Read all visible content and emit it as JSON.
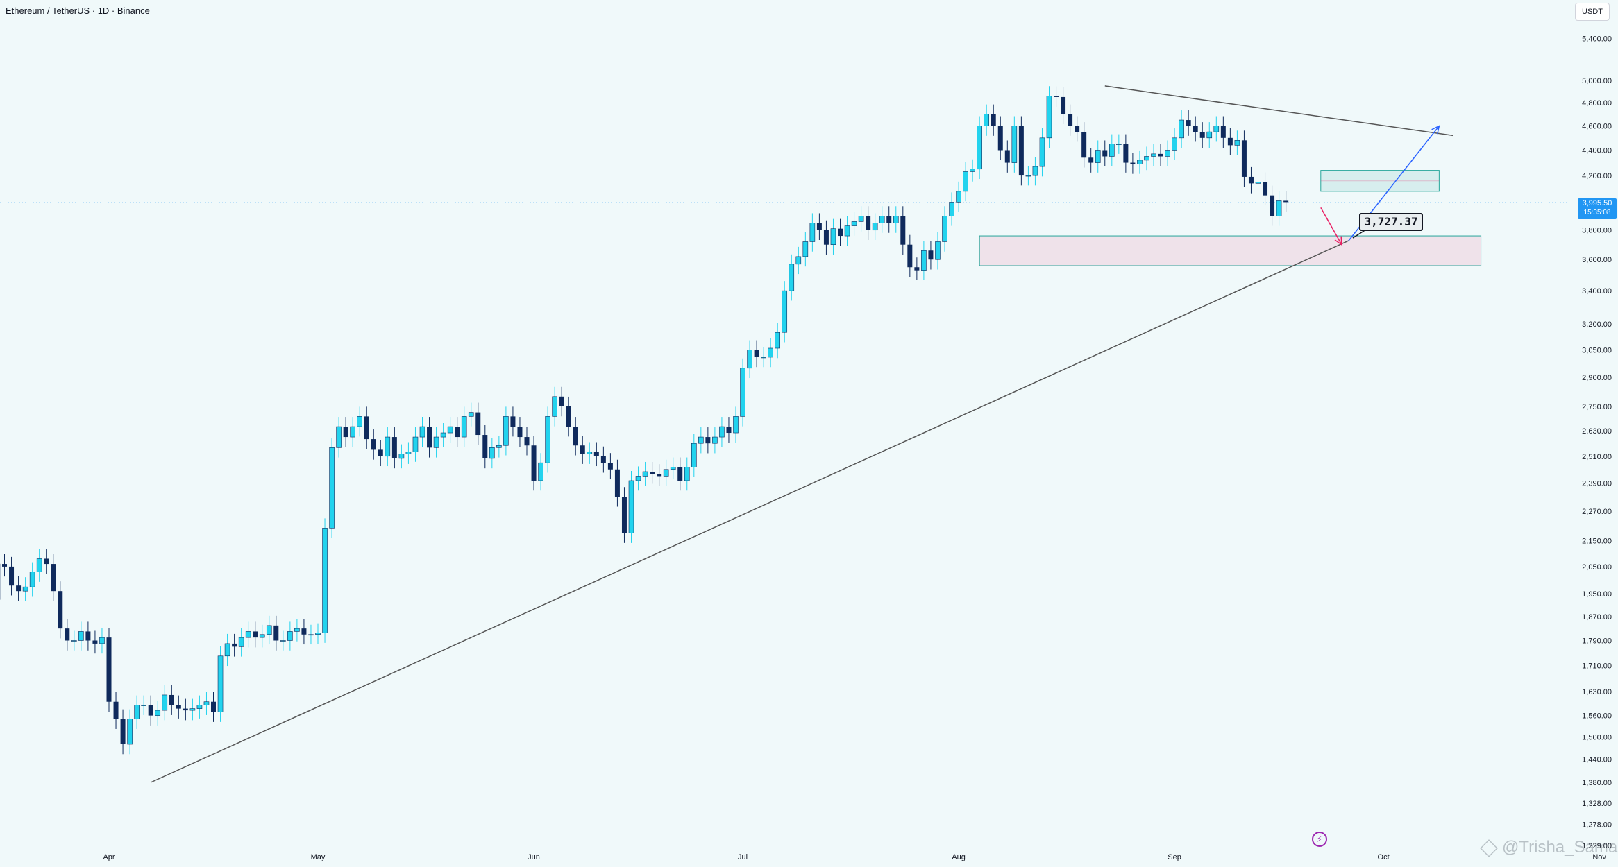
{
  "header": {
    "title": "Ethereum / TetherUS · 1D · Binance",
    "currency": "USDT"
  },
  "price_label": {
    "price": "3,995.50",
    "countdown": "15:35:08"
  },
  "callout": {
    "text": "3,727.37"
  },
  "watermark": {
    "text": "@Trisha_Sama"
  },
  "icons": {
    "bolt": "lightning-icon"
  },
  "colors": {
    "background": "#f0f9fa",
    "up_candle": "#22d3ee",
    "down_candle": "#0f2a5c",
    "trendline": "#555555",
    "blue_arrow": "#2962ff",
    "red_arrow": "#e91e63",
    "zone_border": "#26a69a"
  },
  "chart_data": {
    "type": "candlestick",
    "title": "Ethereum / TetherUS · 1D · Binance",
    "scale": "log",
    "ylim": [
      1220,
      5600
    ],
    "y_tick_labels": [
      "5,400.00",
      "5,000.00",
      "4,800.00",
      "4,600.00",
      "4,400.00",
      "4,200.00",
      "3,800.00",
      "3,600.00",
      "3,400.00",
      "3,200.00",
      "3,050.00",
      "2,900.00",
      "2,750.00",
      "2,630.00",
      "2,510.00",
      "2,390.00",
      "2,270.00",
      "2,150.00",
      "2,050.00",
      "1,950.00",
      "1,870.00",
      "1,790.00",
      "1,710.00",
      "1,630.00",
      "1,560.00",
      "1,500.00",
      "1,440.00",
      "1,380.00",
      "1,328.00",
      "1,278.00",
      "1,229.00"
    ],
    "y_ticks": [
      5400,
      5000,
      4800,
      4600,
      4400,
      4200,
      3800,
      3600,
      3400,
      3200,
      3050,
      2900,
      2750,
      2630,
      2510,
      2390,
      2270,
      2150,
      2050,
      1950,
      1870,
      1790,
      1710,
      1630,
      1560,
      1500,
      1440,
      1380,
      1328,
      1278,
      1229
    ],
    "x_tick_labels": [
      {
        "label": "Apr",
        "date": "2025-04-01"
      },
      {
        "label": "May",
        "date": "2025-05-01"
      },
      {
        "label": "Jun",
        "date": "2025-06-01"
      },
      {
        "label": "Jul",
        "date": "2025-07-01"
      },
      {
        "label": "Aug",
        "date": "2025-08-01"
      },
      {
        "label": "Sep",
        "date": "2025-09-01"
      },
      {
        "label": "Oct",
        "date": "2025-10-01"
      },
      {
        "label": "Nov",
        "date": "2025-11-01"
      }
    ],
    "start_date": "2025-03-12",
    "closes": [
      1880,
      1910,
      1905,
      1930,
      2060,
      2050,
      1980,
      1960,
      1975,
      2030,
      2080,
      2060,
      1960,
      1830,
      1790,
      1790,
      1820,
      1790,
      1780,
      1800,
      1600,
      1550,
      1480,
      1550,
      1590,
      1590,
      1560,
      1575,
      1620,
      1590,
      1580,
      1575,
      1580,
      1590,
      1600,
      1570,
      1740,
      1780,
      1770,
      1800,
      1820,
      1800,
      1810,
      1840,
      1790,
      1790,
      1820,
      1830,
      1810,
      1810,
      1815,
      2200,
      2550,
      2650,
      2600,
      2650,
      2700,
      2590,
      2540,
      2510,
      2600,
      2500,
      2520,
      2530,
      2600,
      2650,
      2550,
      2600,
      2620,
      2650,
      2600,
      2700,
      2720,
      2610,
      2500,
      2550,
      2560,
      2700,
      2650,
      2600,
      2560,
      2400,
      2480,
      2700,
      2800,
      2750,
      2650,
      2560,
      2520,
      2530,
      2510,
      2480,
      2450,
      2330,
      2180,
      2400,
      2420,
      2440,
      2430,
      2420,
      2450,
      2460,
      2400,
      2460,
      2570,
      2600,
      2570,
      2600,
      2650,
      2620,
      2700,
      2950,
      3050,
      3010,
      3010,
      3060,
      3150,
      3400,
      3570,
      3620,
      3720,
      3850,
      3800,
      3700,
      3810,
      3760,
      3830,
      3860,
      3900,
      3800,
      3850,
      3900,
      3850,
      3900,
      3700,
      3550,
      3530,
      3660,
      3600,
      3720,
      3900,
      4000,
      4080,
      4230,
      4250,
      4600,
      4700,
      4600,
      4400,
      4300,
      4600,
      4200,
      4200,
      4270,
      4500,
      4860,
      4850,
      4700,
      4600,
      4550,
      4340,
      4300,
      4400,
      4350,
      4450,
      4450,
      4300,
      4290,
      4320,
      4350,
      4370,
      4350,
      4400,
      4500,
      4650,
      4600,
      4550,
      4500,
      4550,
      4600,
      4500,
      4440,
      4480,
      4190,
      4140,
      4150,
      4050,
      3900,
      4010,
      4000
    ],
    "wedge_top": {
      "from": {
        "date": "2025-08-22",
        "price": 4950
      },
      "to": {
        "date": "2025-10-11",
        "price": 4520
      }
    },
    "trendline": {
      "from": {
        "date": "2025-04-07",
        "price": 1380
      },
      "to": {
        "date": "2025-09-26",
        "price": 3727
      }
    },
    "supply_zone": {
      "from": "2025-09-22",
      "to": "2025-10-09",
      "low": 4080,
      "high": 4240
    },
    "demand_zone": {
      "from": "2025-08-04",
      "to": "2025-10-15",
      "low": 3560,
      "high": 3760
    },
    "red_arrow": {
      "from": {
        "date": "2025-09-22",
        "price": 3960
      },
      "to": {
        "date": "2025-09-25",
        "price": 3700
      }
    },
    "blue_arrow": {
      "from": {
        "date": "2025-09-26",
        "price": 3727
      },
      "to": {
        "date": "2025-10-09",
        "price": 4600
      }
    },
    "current_price": 3995.5,
    "grid": false
  }
}
